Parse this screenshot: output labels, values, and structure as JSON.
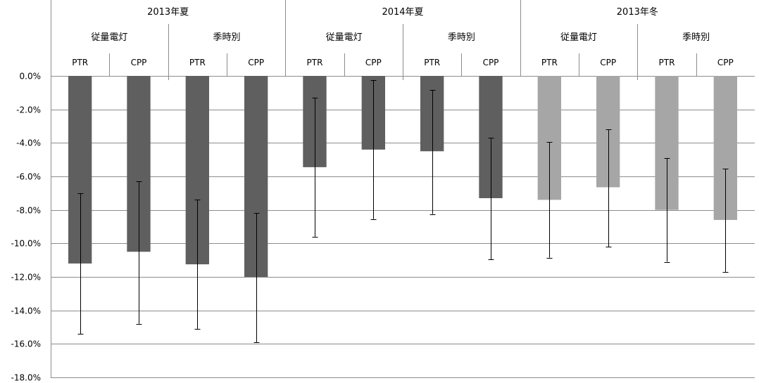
{
  "chart_data": {
    "type": "bar",
    "title": "",
    "xlabel": "",
    "ylabel": "",
    "ylim": [
      -18.0,
      0.0
    ],
    "y_ticks": [
      "0.0%",
      "-2.0%",
      "-4.0%",
      "-6.0%",
      "-8.0%",
      "-10.0%",
      "-12.0%",
      "-14.0%",
      "-16.0%",
      "-18.0%"
    ],
    "y_tick_values": [
      0,
      -2,
      -4,
      -6,
      -8,
      -10,
      -12,
      -14,
      -16,
      -18
    ],
    "grid": true,
    "seasons": [
      "2013年夏",
      "2014年夏",
      "2013年冬"
    ],
    "plans": [
      "従量電灯",
      "季時別"
    ],
    "programs": [
      "PTR",
      "CPP"
    ],
    "colors": {
      "summer": "#5f5f5f",
      "winter": "#a6a6a6",
      "errorbar": "#000000",
      "grid": "#8c8c8c"
    },
    "series": [
      {
        "season": "2013年夏",
        "plan": "従量電灯",
        "program": "PTR",
        "value": -11.2,
        "err_high": -7.0,
        "err_low": -15.4
      },
      {
        "season": "2013年夏",
        "plan": "従量電灯",
        "program": "CPP",
        "value": -10.5,
        "err_high": -6.3,
        "err_low": -14.8
      },
      {
        "season": "2013年夏",
        "plan": "季時別",
        "program": "PTR",
        "value": -11.25,
        "err_high": -7.4,
        "err_low": -15.1
      },
      {
        "season": "2013年夏",
        "plan": "季時別",
        "program": "CPP",
        "value": -12.0,
        "err_high": -8.2,
        "err_low": -15.9
      },
      {
        "season": "2014年夏",
        "plan": "従量電灯",
        "program": "PTR",
        "value": -5.45,
        "err_high": -1.3,
        "err_low": -9.6
      },
      {
        "season": "2014年夏",
        "plan": "従量電灯",
        "program": "CPP",
        "value": -4.4,
        "err_high": -0.25,
        "err_low": -8.55
      },
      {
        "season": "2014年夏",
        "plan": "季時別",
        "program": "PTR",
        "value": -4.5,
        "err_high": -0.85,
        "err_low": -8.25
      },
      {
        "season": "2014年夏",
        "plan": "季時別",
        "program": "CPP",
        "value": -7.3,
        "err_high": -3.7,
        "err_low": -10.95
      },
      {
        "season": "2013年冬",
        "plan": "従量電灯",
        "program": "PTR",
        "value": -7.4,
        "err_high": -3.95,
        "err_low": -10.85
      },
      {
        "season": "2013年冬",
        "plan": "従量電灯",
        "program": "CPP",
        "value": -6.65,
        "err_high": -3.2,
        "err_low": -10.2
      },
      {
        "season": "2013年冬",
        "plan": "季時別",
        "program": "PTR",
        "value": -8.0,
        "err_high": -4.9,
        "err_low": -11.1
      },
      {
        "season": "2013年冬",
        "plan": "季時別",
        "program": "CPP",
        "value": -8.6,
        "err_high": -5.55,
        "err_low": -11.7
      }
    ]
  }
}
